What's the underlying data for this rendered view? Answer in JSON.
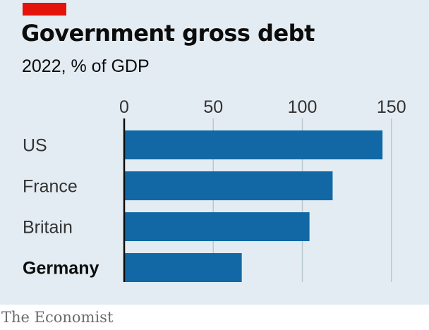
{
  "header": {
    "title": "Government gross debt",
    "subtitle": "2022, % of GDP"
  },
  "footer": {
    "source": "The Economist"
  },
  "colors": {
    "bar": "#1168a4",
    "accent_tag": "#e3120b",
    "background": "#e3ecf2",
    "grid": "#b9c8d2",
    "axis": "#0c0c0c"
  },
  "chart_data": {
    "type": "bar",
    "orientation": "horizontal",
    "title": "Government gross debt",
    "subtitle": "2022, % of GDP",
    "categories": [
      "US",
      "France",
      "Britain",
      "Germany"
    ],
    "values": [
      145,
      117,
      104,
      66
    ],
    "highlight": "Germany",
    "xlim": [
      0,
      160
    ],
    "xticks": [
      "0",
      "50",
      "100",
      "150"
    ],
    "xtick_values": [
      0,
      50,
      100,
      150
    ],
    "grid": true,
    "xlabel": "",
    "ylabel": ""
  }
}
